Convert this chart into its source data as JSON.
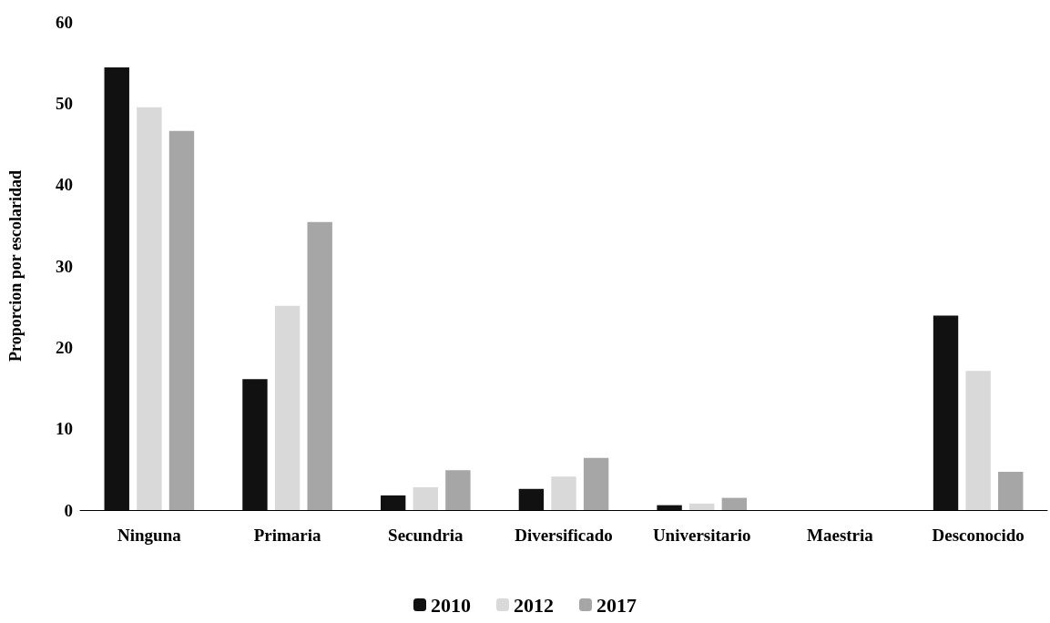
{
  "chart_data": {
    "type": "bar",
    "ylabel": "Proporcion por escolaridad",
    "categories": [
      "Ninguna",
      "Primaria",
      "Secundria",
      "Diversificado",
      "Universitario",
      "Maestria",
      "Desconocido"
    ],
    "series": [
      {
        "name": "2010",
        "color": "#111111",
        "values": [
          54.4,
          16.1,
          1.8,
          2.6,
          0.6,
          0,
          23.9
        ]
      },
      {
        "name": "2012",
        "color": "#d9d9d9",
        "values": [
          49.5,
          25.1,
          2.8,
          4.1,
          0.8,
          0,
          17.1
        ]
      },
      {
        "name": "2017",
        "color": "#a6a6a6",
        "values": [
          46.6,
          35.4,
          4.9,
          6.4,
          1.5,
          0,
          4.7
        ]
      }
    ],
    "ylim": [
      0,
      60
    ],
    "yticks": [
      0,
      10,
      20,
      30,
      40,
      50,
      60
    ],
    "grid": false,
    "legend": "bottom"
  }
}
